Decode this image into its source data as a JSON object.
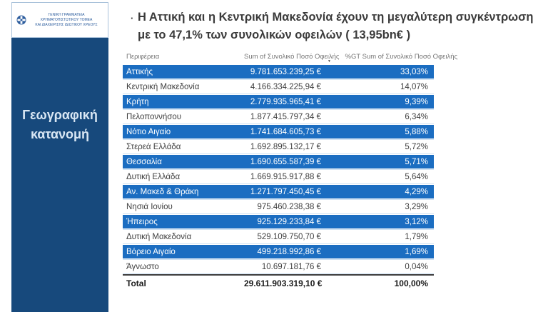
{
  "slide": {
    "title_bullet": "·",
    "title": "Η Αττική και η Κεντρική Μακεδονία  έχουν τη μεγαλύτερη συγκέντρωση με το 47,1% των συνολικών οφειλών ( 13,95bn€ )"
  },
  "sidebar": {
    "logo_org_line1": "ΓΕΝΙΚΗ ΓΡΑΜΜΑΤΕΙΑ ΧΡΗΜΑΤΟΠΙΣΤΩΤΙΚΟΥ ΤΟΜΕΑ",
    "logo_org_line2": "ΚΑΙ ΔΙΑΧΕΙΡΙΣΗΣ ΙΔΙΩΤΙΚΟΥ ΧΡΕΟΥΣ",
    "label_line1": "Γεωγραφική",
    "label_line2": "κατανομή",
    "panel_color": "#17497c",
    "label_color": "#d9e7f4"
  },
  "table": {
    "headers": [
      "Περιφέρεια",
      "Sum of Συνολικό Ποσό Οφειλής",
      "%GT Sum of Συνολικό Ποσό Οφειλής"
    ],
    "sort_icon": "▼",
    "highlight_color": "#1b6dc1",
    "rows": [
      {
        "region": "Αττικής",
        "amount": "9.781.653.239,25 €",
        "pct": "33,03%",
        "highlight": true
      },
      {
        "region": "Κεντρική Μακεδονία",
        "amount": "4.166.334.225,94 €",
        "pct": "14,07%",
        "highlight": false
      },
      {
        "region": "Κρήτη",
        "amount": "2.779.935.965,41 €",
        "pct": "9,39%",
        "highlight": true
      },
      {
        "region": "Πελοποννήσου",
        "amount": "1.877.415.797,34 €",
        "pct": "6,34%",
        "highlight": false
      },
      {
        "region": "Νότιο Αιγαίο",
        "amount": "1.741.684.605,73 €",
        "pct": "5,88%",
        "highlight": true
      },
      {
        "region": "Στερεά Ελλάδα",
        "amount": "1.692.895.132,17 €",
        "pct": "5,72%",
        "highlight": false
      },
      {
        "region": "Θεσσαλία",
        "amount": "1.690.655.587,39 €",
        "pct": "5,71%",
        "highlight": true
      },
      {
        "region": "Δυτική Ελλάδα",
        "amount": "1.669.915.917,88 €",
        "pct": "5,64%",
        "highlight": false
      },
      {
        "region": "Αν. Μακεδ & Θράκη",
        "amount": "1.271.797.450,45 €",
        "pct": "4,29%",
        "highlight": true
      },
      {
        "region": "Νησιά Ιονίου",
        "amount": "975.460.238,38 €",
        "pct": "3,29%",
        "highlight": false
      },
      {
        "region": "Ήπειρος",
        "amount": "925.129.233,84 €",
        "pct": "3,12%",
        "highlight": true
      },
      {
        "region": "Δυτική Μακεδονία",
        "amount": "529.109.750,70 €",
        "pct": "1,79%",
        "highlight": false
      },
      {
        "region": "Βόρειο Αιγαίο",
        "amount": "499.218.992,86 €",
        "pct": "1,69%",
        "highlight": true
      },
      {
        "region": "Άγνωστο",
        "amount": "10.697.181,76 €",
        "pct": "0,04%",
        "highlight": false
      }
    ],
    "total": {
      "region": "Total",
      "amount": "29.611.903.319,10 €",
      "pct": "100,00%"
    }
  },
  "chart_data": {
    "type": "table",
    "title": "Η Αττική και η Κεντρική Μακεδονία έχουν τη μεγαλύτερη συγκέντρωση με το 47,1% των συνολικών οφειλών ( 13,95bn€ )",
    "columns": [
      "Περιφέρεια",
      "Sum of Συνολικό Ποσό Οφειλής (EUR)",
      "%GT Sum of Συνολικό Ποσό Οφειλής"
    ],
    "sort": "percent descending",
    "categories": [
      "Αττικής",
      "Κεντρική Μακεδονία",
      "Κρήτη",
      "Πελοποννήσου",
      "Νότιο Αιγαίο",
      "Στερεά Ελλάδα",
      "Θεσσαλία",
      "Δυτική Ελλάδα",
      "Αν. Μακεδ & Θράκη",
      "Νησιά Ιονίου",
      "Ήπειρος",
      "Δυτική Μακεδονία",
      "Βόρειο Αιγαίο",
      "Άγνωστο"
    ],
    "series": [
      {
        "name": "Sum of Συνολικό Ποσό Οφειλής (EUR)",
        "values": [
          9781653239.25,
          4166334225.94,
          2779935965.41,
          1877415797.34,
          1741684605.73,
          1692895132.17,
          1690655587.39,
          1669915917.88,
          1271797450.45,
          975460238.38,
          925129233.84,
          529109750.7,
          499218992.86,
          10697181.76
        ]
      },
      {
        "name": "%GT Sum of Συνολικό Ποσό Οφειλής",
        "values": [
          33.03,
          14.07,
          9.39,
          6.34,
          5.88,
          5.72,
          5.71,
          5.64,
          4.29,
          3.29,
          3.12,
          1.79,
          1.69,
          0.04
        ]
      }
    ],
    "total": {
      "label": "Total",
      "sum_eur": 29611903319.1,
      "pct": 100.0
    }
  }
}
